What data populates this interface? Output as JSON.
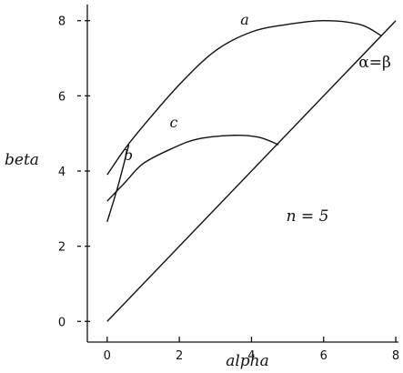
{
  "chart_data": {
    "type": "line",
    "xlabel": "alpha",
    "ylabel": "beta",
    "xlim": [
      -0.55,
      8.2
    ],
    "ylim": [
      -0.55,
      8.55
    ],
    "x_ticks": [
      0,
      2,
      4,
      6,
      8
    ],
    "y_ticks": [
      0,
      2,
      4,
      6,
      8
    ],
    "grid": false,
    "series": [
      {
        "name": "a",
        "points": [
          [
            0,
            3.9
          ],
          [
            0.5,
            4.6
          ],
          [
            1,
            5.2
          ],
          [
            2,
            6.3
          ],
          [
            3,
            7.2
          ],
          [
            4,
            7.7
          ],
          [
            5,
            7.9
          ],
          [
            6,
            8.0
          ],
          [
            7,
            7.9
          ],
          [
            7.6,
            7.6
          ]
        ]
      },
      {
        "name": "b",
        "points": [
          [
            0,
            2.65
          ],
          [
            0.3,
            3.6
          ],
          [
            0.6,
            4.7
          ]
        ]
      },
      {
        "name": "c",
        "points": [
          [
            0,
            3.2
          ],
          [
            0.5,
            3.7
          ],
          [
            1,
            4.2
          ],
          [
            1.8,
            4.6
          ],
          [
            2.5,
            4.85
          ],
          [
            3.5,
            4.95
          ],
          [
            4.2,
            4.9
          ],
          [
            4.75,
            4.7
          ]
        ]
      },
      {
        "name": "α=β",
        "points": [
          [
            0,
            0
          ],
          [
            8,
            8
          ]
        ]
      }
    ],
    "annotations": {
      "a": "a",
      "b": "b",
      "c": "c",
      "identity": "α=β",
      "n_text": "n = 5"
    }
  }
}
